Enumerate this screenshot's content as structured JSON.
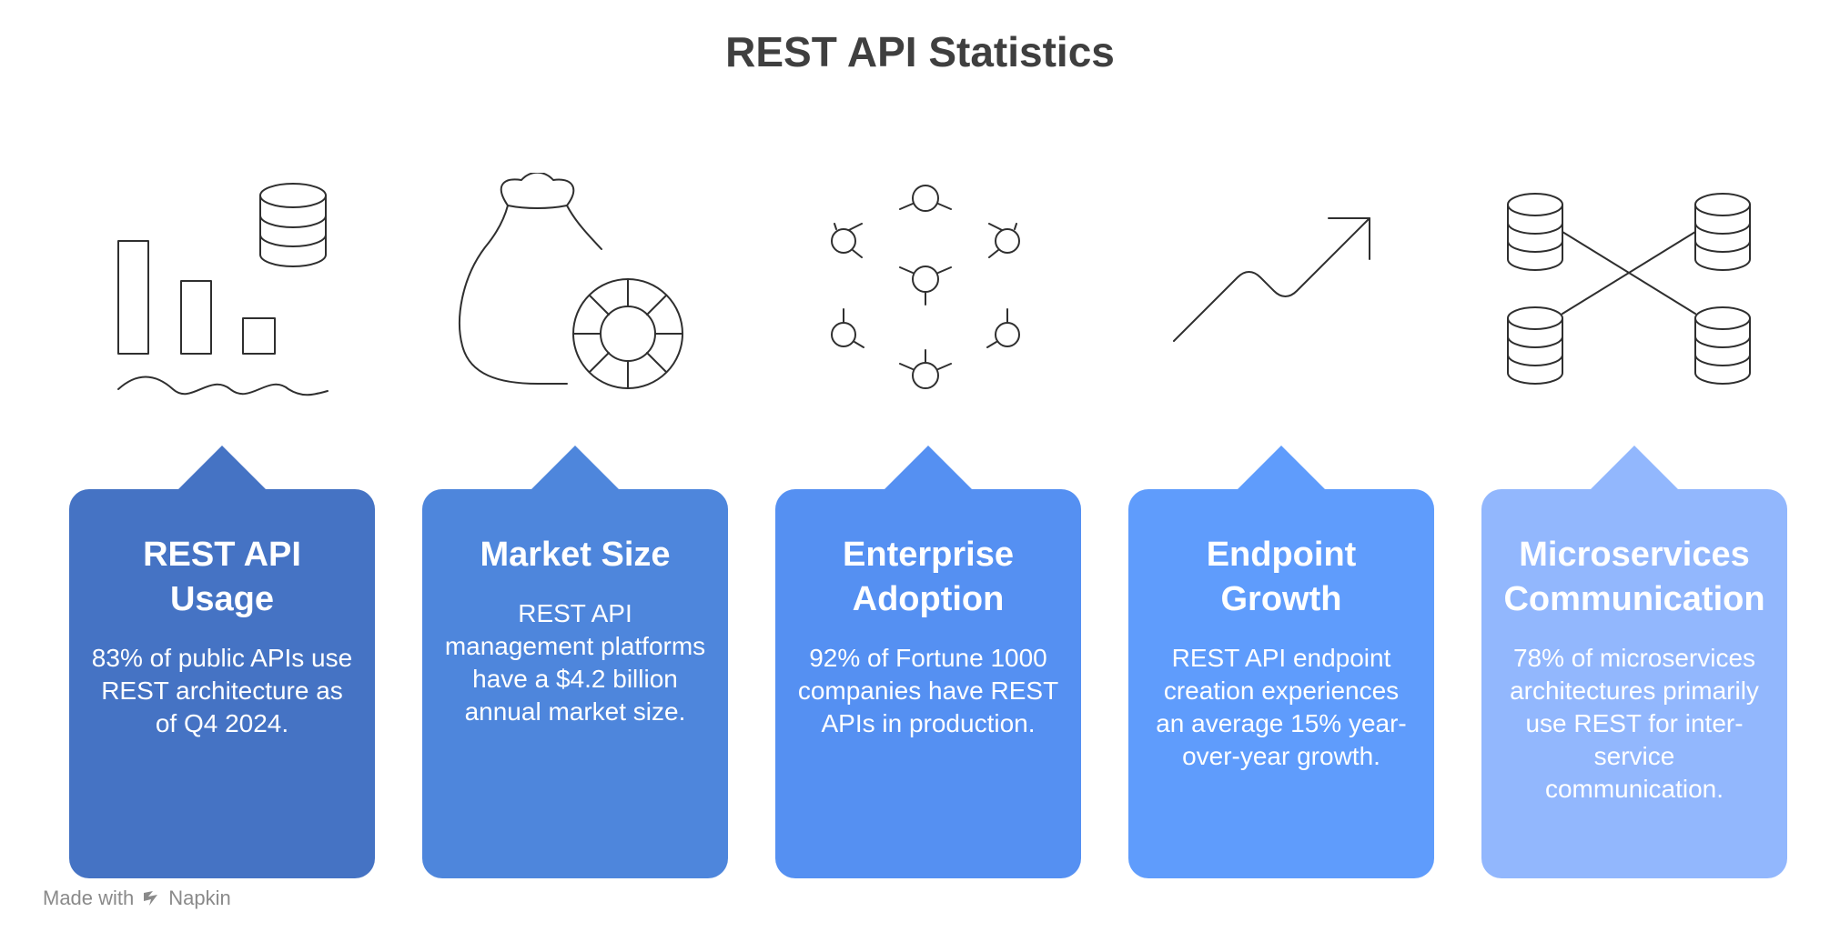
{
  "title": "REST API Statistics",
  "cards": [
    {
      "title": "REST API Usage",
      "text": "83% of public APIs use REST architecture as of Q4 2024.",
      "color": "#4573c4",
      "icon": "bar-chart-database-icon"
    },
    {
      "title": "Market Size",
      "text": "REST API management platforms have a $4.2 billion annual market size.",
      "color": "#4e86dc",
      "icon": "money-bag-icon"
    },
    {
      "title": "Enterprise Adoption",
      "text": "92% of Fortune 1000 companies have REST APIs in production.",
      "color": "#5590f2",
      "icon": "network-nodes-icon"
    },
    {
      "title": "Endpoint Growth",
      "text": "REST API endpoint creation experiences an average 15% year-over-year growth.",
      "color": "#5f9cfc",
      "icon": "trend-arrow-icon"
    },
    {
      "title": "Microservices Communication",
      "text": "78% of microservices architectures primarily use REST for inter-service communication.",
      "color": "#92b7fd",
      "icon": "connected-databases-icon"
    }
  ],
  "footer": {
    "made_with": "Made with",
    "brand": "Napkin",
    "icon": "napkin-logo-icon"
  }
}
